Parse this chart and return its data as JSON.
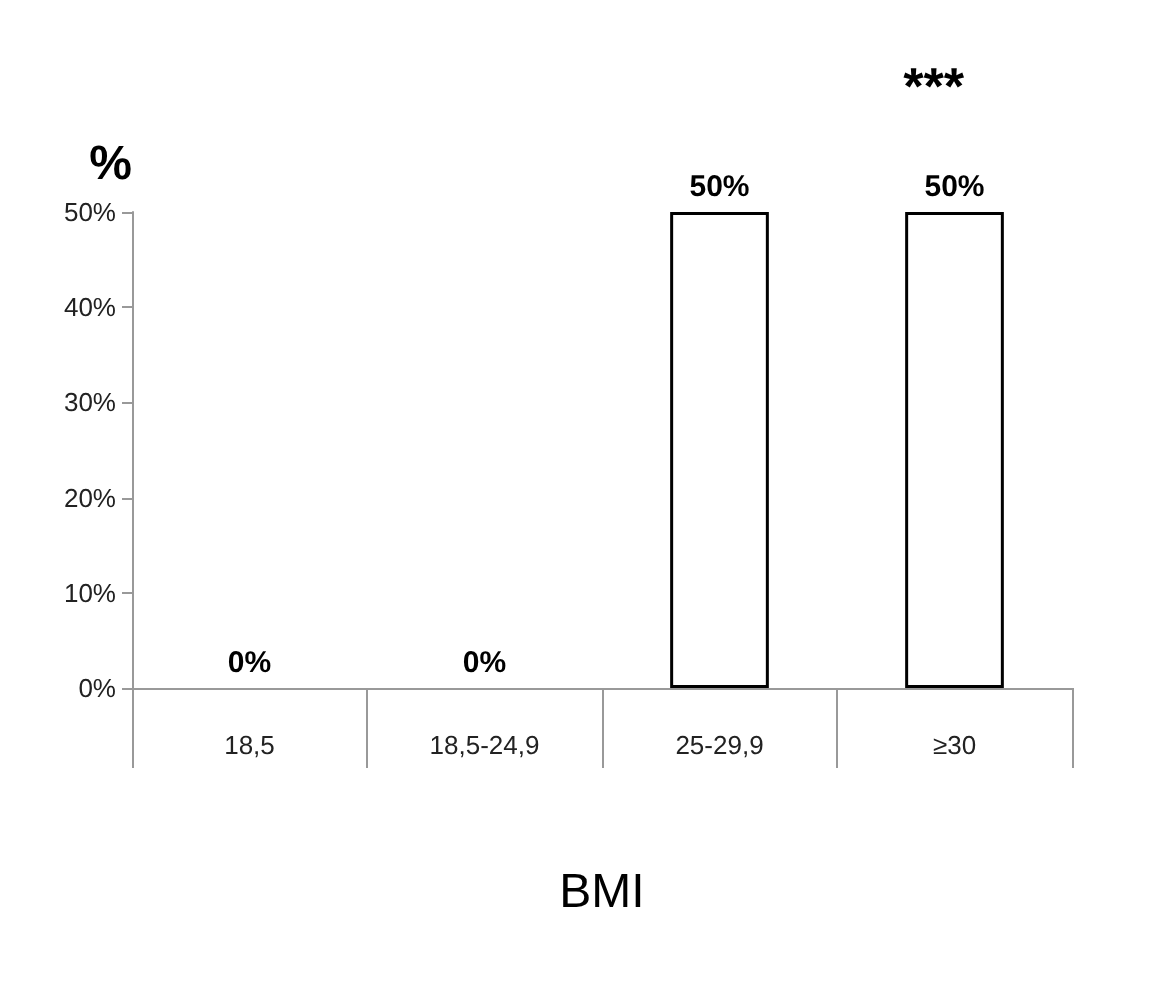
{
  "chart_data": {
    "type": "bar",
    "ylabel": "%",
    "xlabel": "BMI",
    "annotations": [
      "***"
    ],
    "categories": [
      "18,5",
      "18,5-24,9",
      "25-29,9",
      "≥30"
    ],
    "values": [
      0,
      0,
      50,
      50
    ],
    "color": "#ffffff",
    "value_labels": [
      "0%",
      "0%",
      "50%",
      "50%"
    ],
    "ylim": [
      0,
      50
    ],
    "yticks": [
      {
        "value": 0,
        "label": "0%"
      },
      {
        "value": 10,
        "label": "10%"
      },
      {
        "value": 20,
        "label": "20%"
      },
      {
        "value": 30,
        "label": "30%"
      },
      {
        "value": 40,
        "label": "40%"
      },
      {
        "value": 50,
        "label": "50%"
      }
    ],
    "grid": false
  }
}
